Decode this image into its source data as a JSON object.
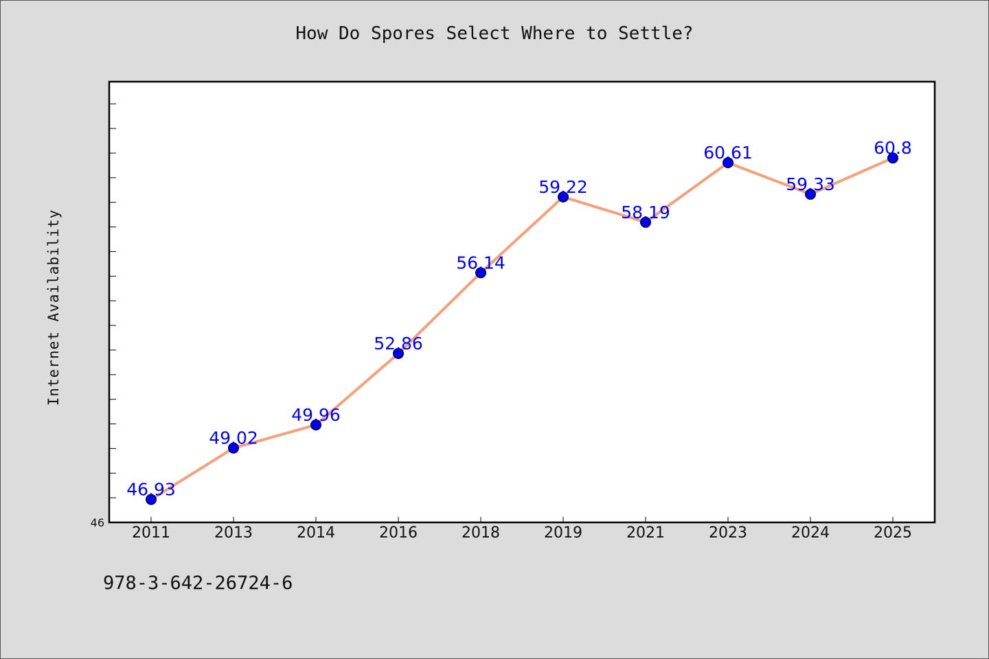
{
  "chart_data": {
    "type": "line",
    "title": "How Do Spores Select Where to Settle?",
    "xlabel": "",
    "ylabel": "Internet Availability",
    "categories": [
      "2011",
      "2013",
      "2014",
      "2016",
      "2018",
      "2019",
      "2021",
      "2023",
      "2024",
      "2025"
    ],
    "series": [
      {
        "values": [
          46.93,
          49.02,
          49.96,
          52.86,
          56.14,
          59.22,
          58.19,
          60.61,
          59.33,
          60.8
        ]
      }
    ],
    "data_labels": [
      "46.93",
      "49.02",
      "49.96",
      "52.86",
      "56.14",
      "59.22",
      "58.19",
      "60.61",
      "59.33",
      "60.8"
    ],
    "ylim": [
      46,
      63.9
    ],
    "y_tick_label": "46",
    "grid": false,
    "line_color": "#f4a07a",
    "marker_color": "#0000ee",
    "label_color": "#0000ff"
  },
  "footer": {
    "code": "978-3-642-26724-6"
  }
}
